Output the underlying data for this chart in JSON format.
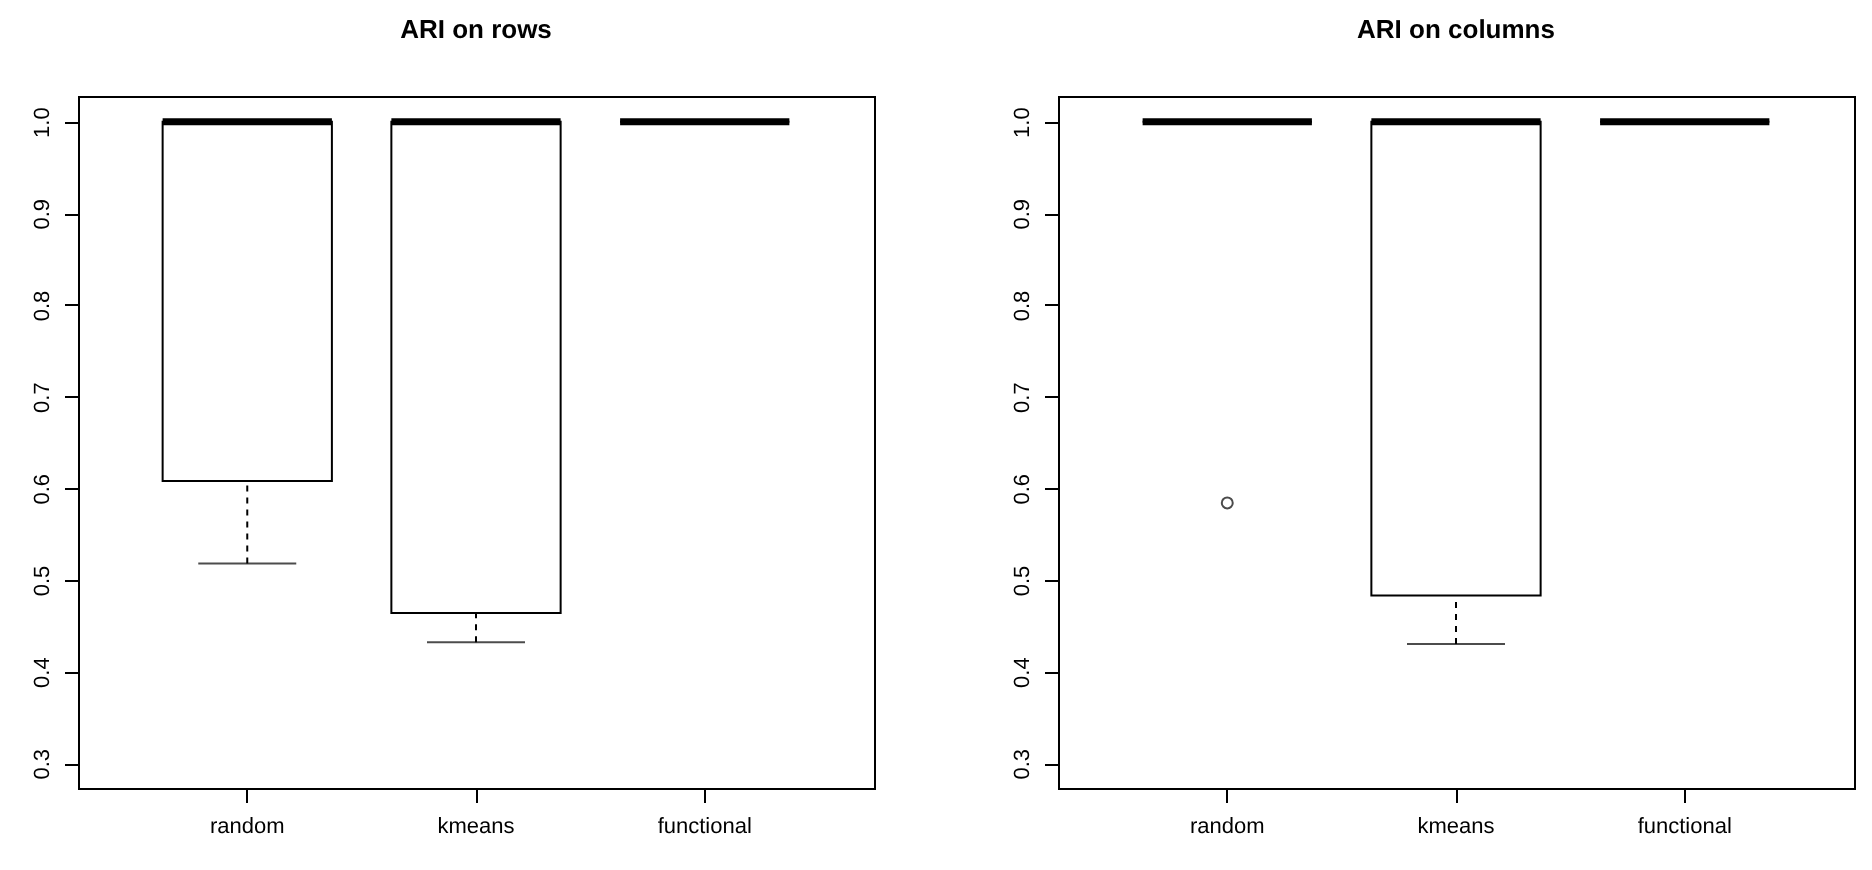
{
  "chart_data": [
    {
      "type": "box",
      "title": "ARI on rows",
      "categories": [
        "random",
        "kmeans",
        "functional"
      ],
      "ylim": [
        0.273,
        1.028
      ],
      "yticks": [
        0.3,
        0.4,
        0.5,
        0.6,
        0.7,
        0.8,
        0.9,
        {
          "value": 1,
          "label": "1.0"
        }
      ],
      "grid": false,
      "boxes": [
        {
          "low": 0.518,
          "q1": 0.608,
          "median": 1,
          "q3": 1,
          "high": 1
        },
        {
          "low": 0.432,
          "q1": 0.464,
          "median": 1,
          "q3": 1,
          "high": 1
        },
        {
          "low": 1,
          "q1": 1,
          "median": 1,
          "q3": 1,
          "high": 1
        }
      ]
    },
    {
      "type": "box",
      "title": "ARI on columns",
      "categories": [
        "random",
        "kmeans",
        "functional"
      ],
      "ylim": [
        0.273,
        1.028
      ],
      "yticks": [
        0.3,
        0.4,
        0.5,
        0.6,
        0.7,
        0.8,
        0.9,
        {
          "value": 1,
          "label": "1.0"
        }
      ],
      "grid": false,
      "boxes": [
        {
          "low": 1,
          "q1": 1,
          "median": 1,
          "q3": 1,
          "high": 1,
          "outliers": [
            0.584
          ]
        },
        {
          "low": 0.43,
          "q1": 0.483,
          "median": 1,
          "q3": 1,
          "high": 1
        },
        {
          "low": 1,
          "q1": 1,
          "median": 1,
          "q3": 1,
          "high": 1
        }
      ]
    }
  ]
}
